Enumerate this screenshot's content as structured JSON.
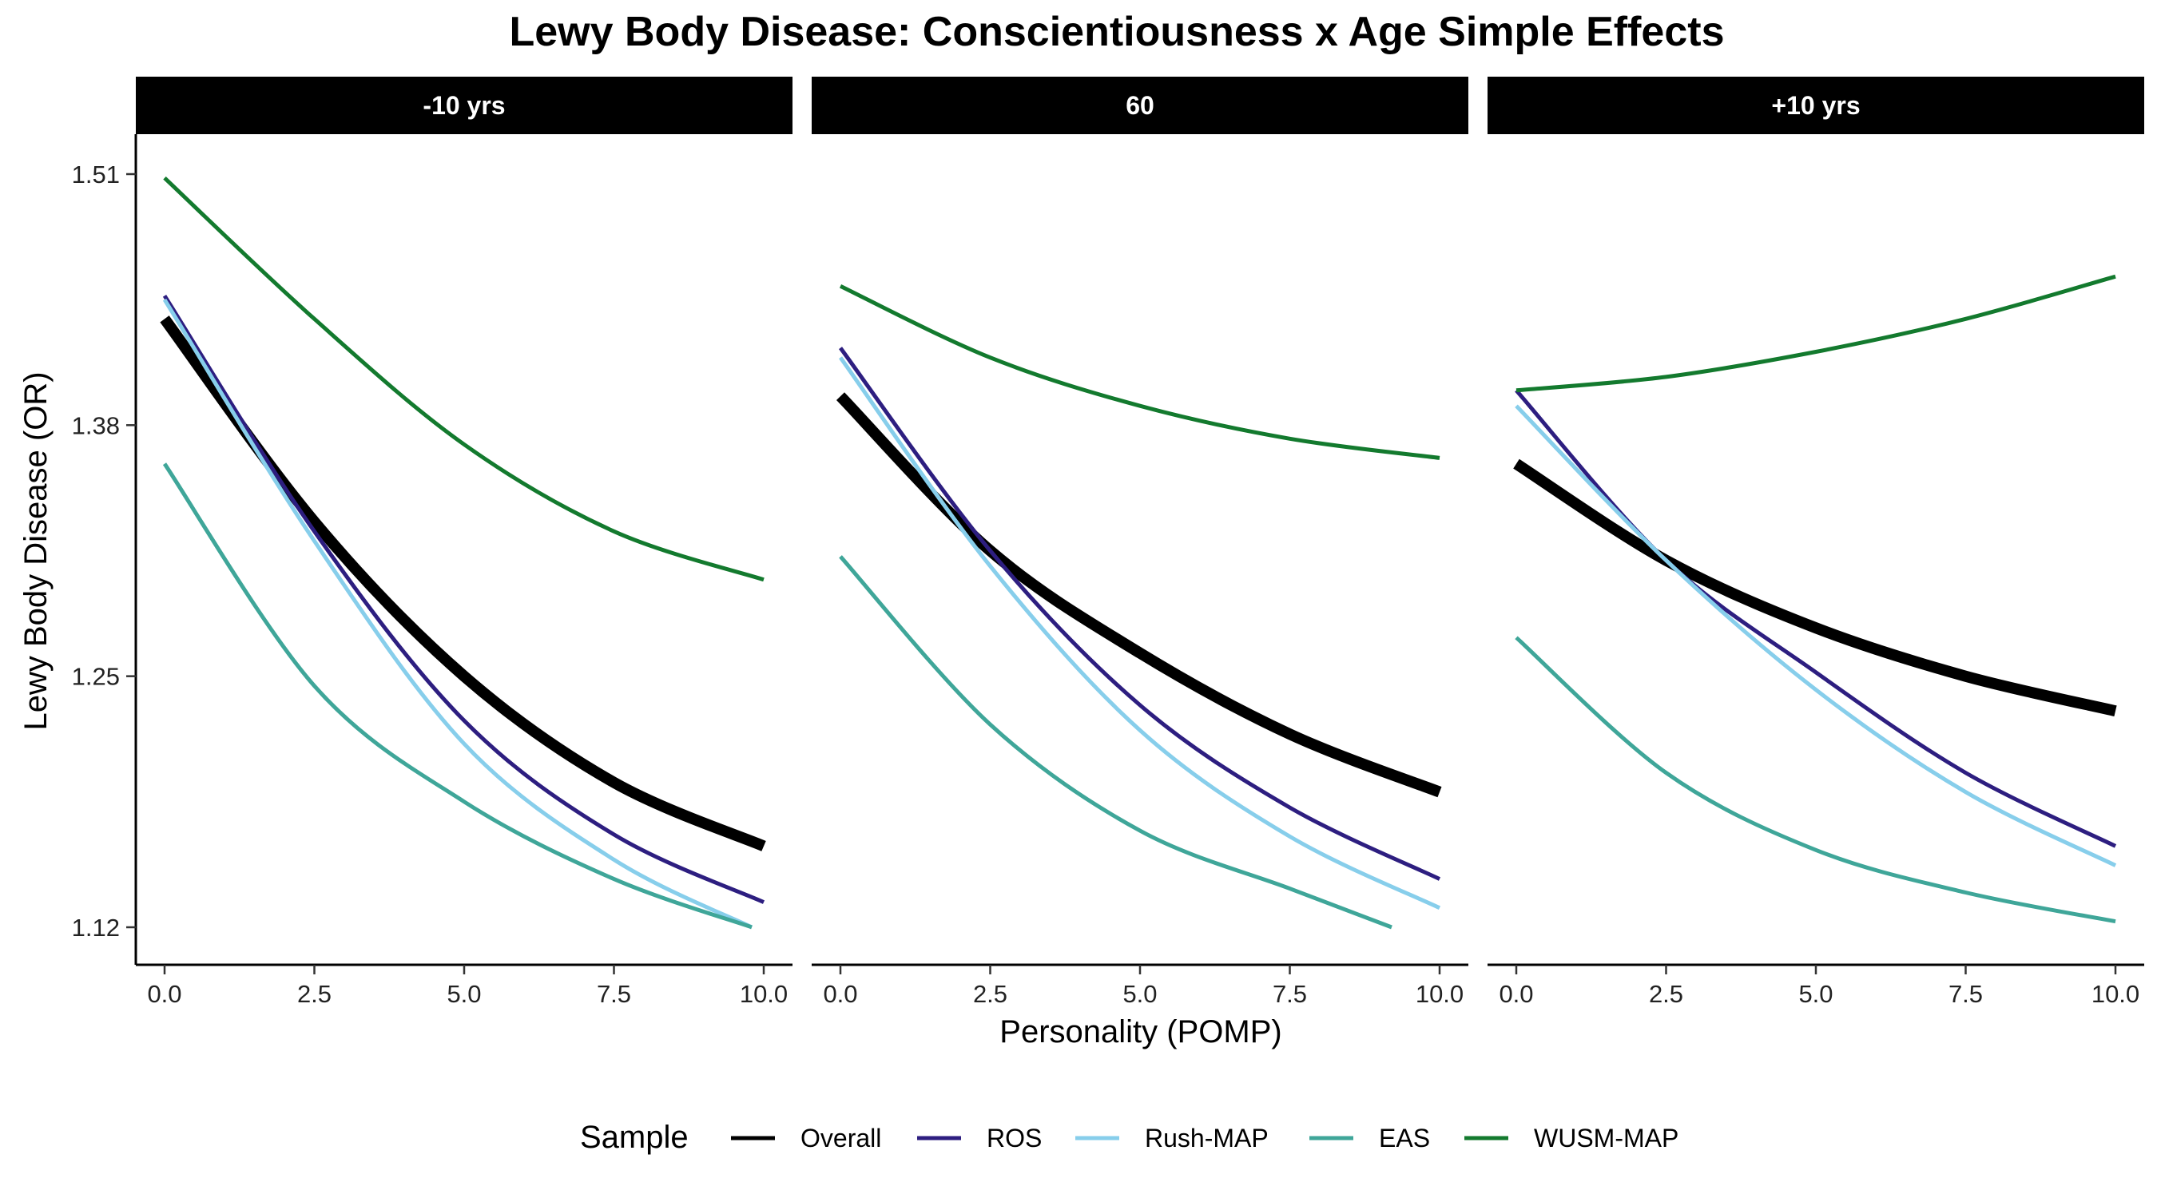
{
  "chart_data": {
    "type": "line",
    "title": "Lewy Body Disease: Conscientiousness x Age Simple Effects",
    "xlabel": "Personality (POMP)",
    "ylabel": "Lewy Body Disease (OR)",
    "xlim": [
      -0.5,
      10.5
    ],
    "ylim": [
      1.1,
      1.53
    ],
    "x_ticks": [
      0,
      2.5,
      5,
      7.5,
      10
    ],
    "x_tick_labels": [
      "0.0",
      "2.5",
      "5.0",
      "7.5",
      "10.0"
    ],
    "y_ticks": [
      1.12,
      1.25,
      1.38,
      1.51
    ],
    "y_tick_labels": [
      "1.12",
      "1.25",
      "1.38",
      "1.51"
    ],
    "grid": false,
    "legend": {
      "title": "Sample",
      "position": "bottom"
    },
    "x": [
      0,
      2.5,
      5,
      7.5,
      10
    ],
    "facets": [
      {
        "label": "-10 yrs",
        "series": [
          {
            "name": "Overall",
            "color": "#000000",
            "values": [
              1.435,
              1.33,
              1.25,
              1.195,
              1.162
            ]
          },
          {
            "name": "ROS",
            "color": "#2d1e80",
            "values": [
              1.447,
              1.325,
              1.227,
              1.168,
              1.133
            ]
          },
          {
            "name": "Rush-MAP",
            "color": "#87ceeb",
            "values": [
              1.445,
              1.32,
              1.215,
              1.155,
              1.12
            ],
            "x_end": 9.8
          },
          {
            "name": "EAS",
            "color": "#3fa699",
            "values": [
              1.36,
              1.245,
              1.185,
              1.145,
              1.12
            ],
            "x_end": 9.8
          },
          {
            "name": "WUSM-MAP",
            "color": "#137a2e",
            "values": [
              1.508,
              1.435,
              1.37,
              1.325,
              1.3
            ]
          }
        ]
      },
      {
        "label": "60",
        "series": [
          {
            "name": "Overall",
            "color": "#000000",
            "values": [
              1.395,
              1.315,
              1.262,
              1.22,
              1.19
            ]
          },
          {
            "name": "ROS",
            "color": "#2d1e80",
            "values": [
              1.42,
              1.315,
              1.235,
              1.182,
              1.145
            ]
          },
          {
            "name": "Rush-MAP",
            "color": "#87ceeb",
            "values": [
              1.415,
              1.307,
              1.222,
              1.167,
              1.13
            ]
          },
          {
            "name": "EAS",
            "color": "#3fa699",
            "values": [
              1.312,
              1.225,
              1.17,
              1.14,
              1.12
            ],
            "x_end": 9.2
          },
          {
            "name": "WUSM-MAP",
            "color": "#137a2e",
            "values": [
              1.452,
              1.415,
              1.39,
              1.373,
              1.363
            ]
          }
        ]
      },
      {
        "label": "+10 yrs",
        "series": [
          {
            "name": "Overall",
            "color": "#000000",
            "values": [
              1.36,
              1.31,
              1.275,
              1.25,
              1.232
            ]
          },
          {
            "name": "ROS",
            "color": "#2d1e80",
            "values": [
              1.398,
              1.31,
              1.252,
              1.2,
              1.162
            ]
          },
          {
            "name": "Rush-MAP",
            "color": "#87ceeb",
            "values": [
              1.39,
              1.31,
              1.243,
              1.19,
              1.152
            ]
          },
          {
            "name": "EAS",
            "color": "#3fa699",
            "values": [
              1.27,
              1.2,
              1.16,
              1.138,
              1.123
            ]
          },
          {
            "name": "WUSM-MAP",
            "color": "#137a2e",
            "values": [
              1.398,
              1.405,
              1.418,
              1.435,
              1.457
            ]
          }
        ]
      }
    ]
  }
}
